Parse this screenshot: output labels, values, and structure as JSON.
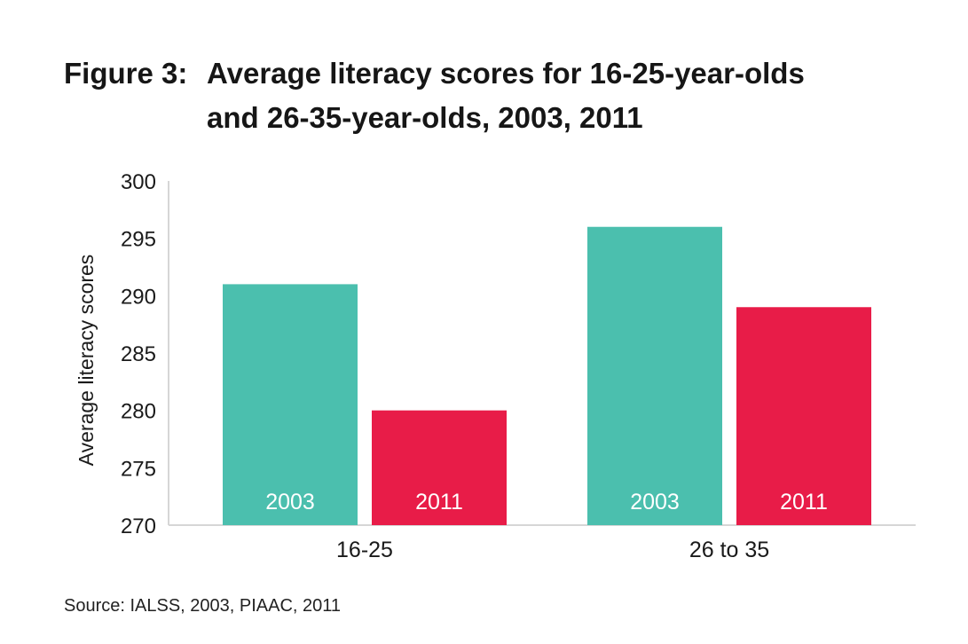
{
  "figure": {
    "label": "Figure 3:",
    "title_line1": "Average literacy scores for 16-25-year-olds",
    "title_line2": "and 26-35-year-olds, 2003, 2011"
  },
  "source": "Source: IALSS, 2003, PIAAC, 2011",
  "chart_data": {
    "type": "bar",
    "title": "Average literacy scores for 16-25-year-olds and 26-35-year-olds, 2003, 2011",
    "xlabel": "",
    "ylabel": "Average literacy scores",
    "ylim": [
      270,
      300
    ],
    "yticks": [
      270,
      275,
      280,
      285,
      290,
      295,
      300
    ],
    "grid": false,
    "legend": "none (series labels printed inside bars)",
    "categories": [
      "16-25",
      "26 to 35"
    ],
    "series": [
      {
        "name": "2003",
        "color": "#4bbfae",
        "values": [
          291,
          296
        ]
      },
      {
        "name": "2011",
        "color": "#e81c48",
        "values": [
          280,
          289
        ]
      }
    ]
  }
}
